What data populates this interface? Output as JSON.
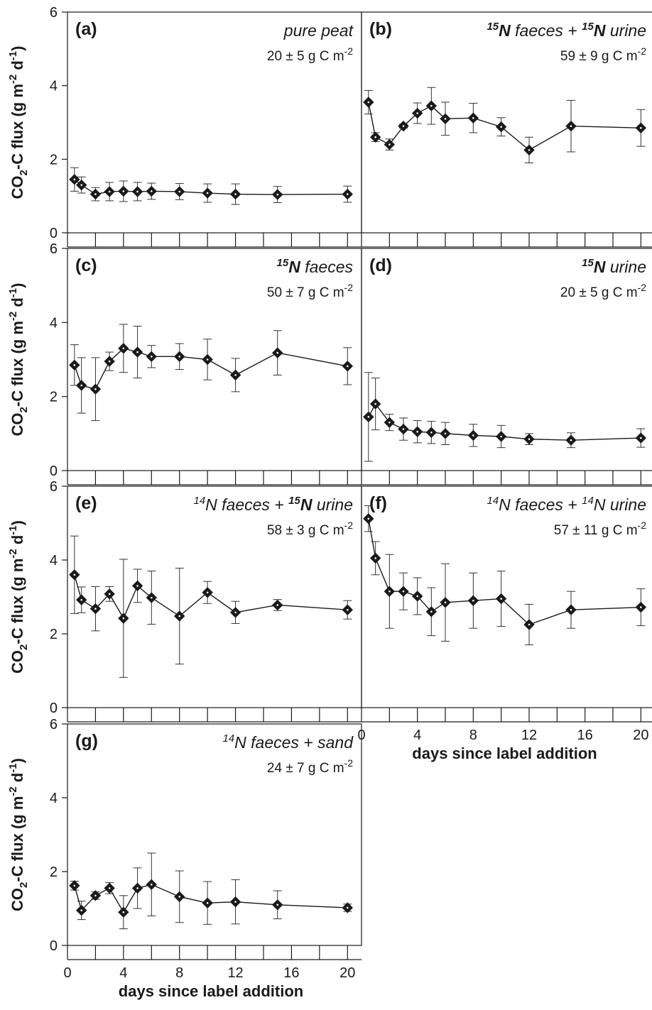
{
  "x_label": "days since label addition",
  "y_label": "CO2-C flux (g m-2 d-1)",
  "chart_data": [
    {
      "type": "line",
      "panel": "(a)",
      "label": "pure peat",
      "summary": "20 ± 5 g C m-2",
      "xlabel": "",
      "ylabel": "CO2-C flux (g m-2 d-1)",
      "xlim": [
        0,
        21
      ],
      "ylim": [
        0,
        6
      ],
      "xticks": [
        0,
        4,
        8,
        12,
        16,
        20
      ],
      "yticks": [
        0,
        2,
        4,
        6
      ],
      "x": [
        0.5,
        1,
        2,
        3,
        4,
        5,
        6,
        8,
        10,
        12,
        15,
        20
      ],
      "y": [
        1.45,
        1.3,
        1.05,
        1.12,
        1.13,
        1.12,
        1.13,
        1.12,
        1.08,
        1.05,
        1.04,
        1.05
      ],
      "err": [
        0.32,
        0.22,
        0.18,
        0.25,
        0.28,
        0.25,
        0.22,
        0.22,
        0.25,
        0.28,
        0.22,
        0.22
      ]
    },
    {
      "type": "line",
      "panel": "(b)",
      "label": "15N faeces + 15N urine",
      "summary": "59 ± 9 g C m-2",
      "xlabel": "",
      "ylabel": "",
      "xlim": [
        0,
        21
      ],
      "ylim": [
        0,
        6
      ],
      "xticks": [
        0,
        4,
        8,
        12,
        16,
        20
      ],
      "yticks": [
        0,
        2,
        4,
        6
      ],
      "x": [
        0.5,
        1,
        2,
        3,
        4,
        5,
        6,
        8,
        10,
        12,
        15,
        20
      ],
      "y": [
        3.55,
        2.6,
        2.4,
        2.9,
        3.25,
        3.45,
        3.1,
        3.12,
        2.88,
        2.25,
        2.9,
        2.85
      ],
      "err": [
        0.32,
        0.12,
        0.15,
        0.05,
        0.28,
        0.5,
        0.45,
        0.4,
        0.25,
        0.35,
        0.7,
        0.5
      ]
    },
    {
      "type": "line",
      "panel": "(c)",
      "label": "15N faeces",
      "summary": "50 ± 7 g C m-2",
      "xlabel": "",
      "ylabel": "CO2-C flux (g m-2 d-1)",
      "xlim": [
        0,
        21
      ],
      "ylim": [
        0,
        6
      ],
      "xticks": [
        0,
        4,
        8,
        12,
        16,
        20
      ],
      "yticks": [
        0,
        2,
        4,
        6
      ],
      "x": [
        0.5,
        1,
        2,
        3,
        4,
        5,
        6,
        8,
        10,
        12,
        15,
        20
      ],
      "y": [
        2.85,
        2.3,
        2.2,
        2.95,
        3.3,
        3.2,
        3.08,
        3.08,
        3.0,
        2.58,
        3.18,
        2.82
      ],
      "err": [
        0.55,
        0.75,
        0.85,
        0.25,
        0.65,
        0.7,
        0.3,
        0.35,
        0.55,
        0.45,
        0.6,
        0.5
      ]
    },
    {
      "type": "line",
      "panel": "(d)",
      "label": "15N urine",
      "summary": "20 ± 5 g C m-2",
      "xlabel": "",
      "ylabel": "",
      "xlim": [
        0,
        21
      ],
      "ylim": [
        0,
        6
      ],
      "xticks": [
        0,
        4,
        8,
        12,
        16,
        20
      ],
      "yticks": [
        0,
        2,
        4,
        6
      ],
      "x": [
        0.5,
        1,
        2,
        3,
        4,
        5,
        6,
        8,
        10,
        12,
        15,
        20
      ],
      "y": [
        1.45,
        1.8,
        1.3,
        1.12,
        1.05,
        1.03,
        1.0,
        0.95,
        0.92,
        0.85,
        0.82,
        0.88
      ],
      "err": [
        1.2,
        0.7,
        0.22,
        0.3,
        0.3,
        0.3,
        0.3,
        0.3,
        0.3,
        0.15,
        0.2,
        0.25
      ]
    },
    {
      "type": "line",
      "panel": "(e)",
      "label": "14N faeces + 15N urine",
      "summary": "58 ± 3 g C m-2",
      "xlabel": "",
      "ylabel": "CO2-C flux (g m-2 d-1)",
      "xlim": [
        0,
        21
      ],
      "ylim": [
        0,
        6
      ],
      "xticks": [
        0,
        4,
        8,
        12,
        16,
        20
      ],
      "yticks": [
        0,
        2,
        4,
        6
      ],
      "x": [
        0.5,
        1,
        2,
        3,
        4,
        5,
        6,
        8,
        10,
        12,
        15,
        20
      ],
      "y": [
        3.6,
        2.92,
        2.68,
        3.08,
        2.42,
        3.3,
        2.98,
        2.48,
        3.12,
        2.58,
        2.78,
        2.65
      ],
      "err": [
        1.05,
        0.35,
        0.6,
        0.2,
        1.6,
        0.45,
        0.72,
        1.3,
        0.3,
        0.3,
        0.15,
        0.25
      ]
    },
    {
      "type": "line",
      "panel": "(f)",
      "label": "14N faeces + 14N urine",
      "summary": "57 ± 11 g C m-2",
      "xlabel": "days since label addition",
      "ylabel": "",
      "xlim": [
        0,
        21
      ],
      "ylim": [
        0,
        6
      ],
      "xticks": [
        0,
        4,
        8,
        12,
        16,
        20
      ],
      "yticks": [
        0,
        2,
        4,
        6
      ],
      "x": [
        0.5,
        1,
        2,
        3,
        4,
        5,
        6,
        8,
        10,
        12,
        15,
        20
      ],
      "y": [
        5.12,
        4.05,
        3.15,
        3.15,
        3.02,
        2.6,
        2.85,
        2.9,
        2.95,
        2.25,
        2.65,
        2.72
      ],
      "err": [
        0.35,
        0.45,
        1.0,
        0.5,
        0.5,
        0.65,
        1.05,
        0.75,
        0.75,
        0.55,
        0.5,
        0.5
      ]
    },
    {
      "type": "line",
      "panel": "(g)",
      "label": "14N faeces + sand",
      "summary": "24 ± 7 g C m-2",
      "xlabel": "days since label addition",
      "ylabel": "CO2-C flux (g m-2 d-1)",
      "xlim": [
        0,
        21
      ],
      "ylim": [
        0,
        6
      ],
      "xticks": [
        0,
        4,
        8,
        12,
        16,
        20
      ],
      "yticks": [
        0,
        2,
        4,
        6
      ],
      "x": [
        0.5,
        1,
        2,
        3,
        4,
        5,
        6,
        8,
        10,
        12,
        15,
        20
      ],
      "y": [
        1.62,
        0.95,
        1.35,
        1.55,
        0.9,
        1.55,
        1.65,
        1.32,
        1.15,
        1.18,
        1.1,
        1.02
      ],
      "err": [
        0.12,
        0.25,
        0.1,
        0.15,
        0.45,
        0.55,
        0.85,
        0.7,
        0.58,
        0.6,
        0.38,
        0.1
      ]
    }
  ]
}
